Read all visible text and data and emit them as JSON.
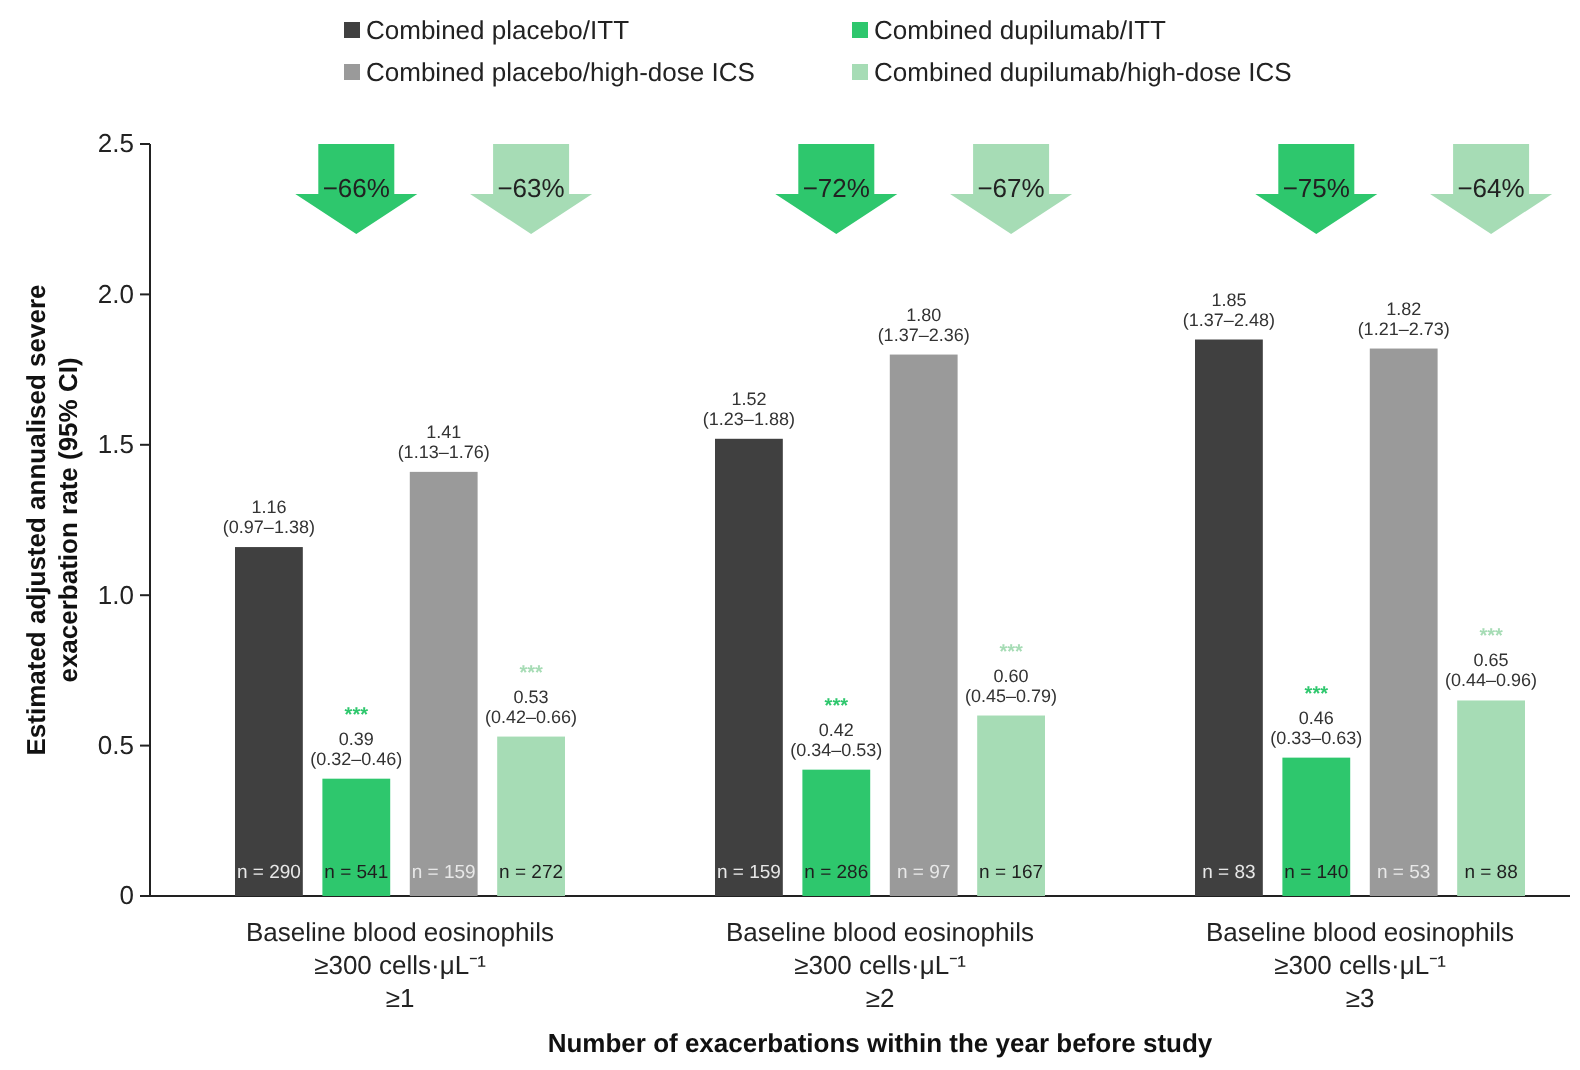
{
  "chart_data": {
    "type": "bar",
    "xlabel": "Number of exacerbations within the year before study",
    "ylabel": "Estimated adjusted annualised severe\nexacerbation rate (95% CI)",
    "categories": [
      "Baseline blood eosinophils\n≥300 cells·μL⁻¹\n≥1",
      "Baseline blood eosinophils\n≥300 cells·μL⁻¹\n≥2",
      "Baseline blood eosinophils\n≥300 cells·μL⁻¹\n≥3"
    ],
    "series": [
      {
        "name": "Combined placebo/ITT",
        "color": "#404040",
        "values": [
          1.16,
          1.52,
          1.85
        ],
        "value_labels": [
          "1.16\n(0.97–1.38)",
          "1.52\n(1.23–1.88)",
          "1.85\n(1.37–2.48)"
        ]
      },
      {
        "name": "Combined dupilumab/ITT",
        "color": "#2ec76d",
        "values": [
          0.39,
          0.42,
          0.46
        ],
        "value_labels": [
          "***\n0.39\n(0.32–0.46)",
          "***\n0.42\n(0.34–0.53)",
          "***\n0.46\n(0.33–0.63)"
        ]
      },
      {
        "name": "Combined placebo/high-dose ICS",
        "color": "#9a9a9a",
        "values": [
          1.41,
          1.8,
          1.82
        ],
        "value_labels": [
          "1.41\n(1.13–1.76)",
          "1.80\n(1.37–2.36)",
          "1.82\n(1.21–2.73)"
        ]
      },
      {
        "name": "Combined dupilumab/high-dose ICS",
        "color": "#a6dcb5",
        "values": [
          0.53,
          0.6,
          0.65
        ],
        "value_labels": [
          "***\n0.53\n(0.42–0.66)",
          "***\n0.60\n(0.45–0.79)",
          "***\n0.65\n(0.44–0.96)"
        ]
      }
    ],
    "ylim": [
      0,
      2.5
    ],
    "yticks": [
      0,
      0.5,
      {
        "value": 1,
        "label": "1.0"
      },
      1.5,
      {
        "value": 2,
        "label": "2.0"
      },
      2.5
    ],
    "legend": "top",
    "annotations": [
      "−66%",
      "−63%",
      "−72%",
      "−67%",
      "−75%",
      "−64%",
      "n = 290",
      "n = 541",
      "n = 159",
      "n = 272",
      "n = 159",
      "n = 286",
      "n = 97",
      "n = 167",
      "n = 83",
      "n = 140",
      "n = 53",
      "n = 88"
    ]
  }
}
